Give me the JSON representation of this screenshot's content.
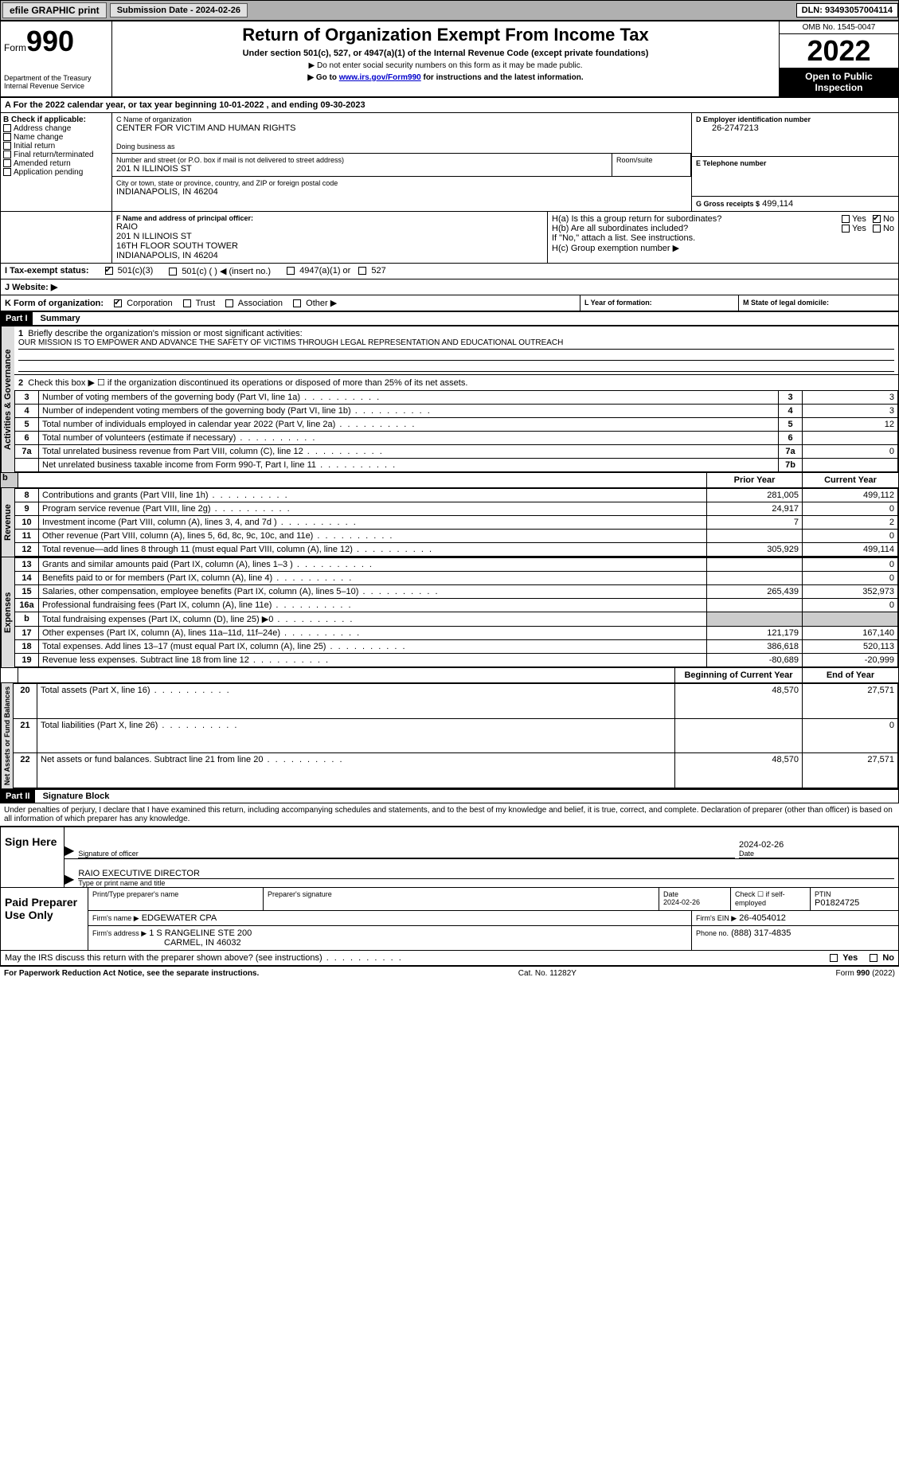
{
  "topbar": {
    "efile": "efile GRAPHIC print",
    "submission": "Submission Date - 2024-02-26",
    "dln": "DLN: 93493057004114"
  },
  "header": {
    "form_word": "Form",
    "form_num": "990",
    "dept": "Department of the Treasury Internal Revenue Service",
    "title": "Return of Organization Exempt From Income Tax",
    "sub": "Under section 501(c), 527, or 4947(a)(1) of the Internal Revenue Code (except private foundations)",
    "note1": "▶ Do not enter social security numbers on this form as it may be made public.",
    "note2_pre": "▶ Go to ",
    "note2_link": "www.irs.gov/Form990",
    "note2_post": " for instructions and the latest information.",
    "omb": "OMB No. 1545-0047",
    "year": "2022",
    "open": "Open to Public Inspection"
  },
  "A": "A For the 2022 calendar year, or tax year beginning 10-01-2022    , and ending 09-30-2023",
  "B": {
    "title": "B Check if applicable:",
    "opts": [
      "Address change",
      "Name change",
      "Initial return",
      "Final return/terminated",
      "Amended return",
      "Application pending"
    ]
  },
  "C": {
    "label_name": "C Name of organization",
    "name": "CENTER FOR VICTIM AND HUMAN RIGHTS",
    "dba_label": "Doing business as",
    "addr_label": "Number and street (or P.O. box if mail is not delivered to street address)",
    "room": "Room/suite",
    "street": "201 N ILLINOIS ST",
    "city_label": "City or town, state or province, country, and ZIP or foreign postal code",
    "city": "INDIANAPOLIS, IN  46204"
  },
  "D": {
    "label": "D Employer identification number",
    "val": "26-2747213"
  },
  "E": {
    "label": "E Telephone number",
    "val": ""
  },
  "G": {
    "label": "G Gross receipts $",
    "val": "499,114"
  },
  "F": {
    "label": "F  Name and address of principal officer:",
    "lines": [
      "RAIO",
      "201 N ILLINOIS ST",
      "16TH FLOOR SOUTH TOWER",
      "INDIANAPOLIS, IN  46204"
    ]
  },
  "H": {
    "a": "H(a)  Is this a group return for subordinates?",
    "b": "H(b)  Are all subordinates included?",
    "note": "If \"No,\" attach a list. See instructions.",
    "c": "H(c)  Group exemption number ▶",
    "yes": "Yes",
    "no": "No"
  },
  "I": {
    "label": "I  Tax-exempt status:",
    "opts": [
      "501(c)(3)",
      "501(c) (  ) ◀ (insert no.)",
      "4947(a)(1) or",
      "527"
    ]
  },
  "J": {
    "label": "J  Website: ▶"
  },
  "K": {
    "label": "K Form of organization:",
    "opts": [
      "Corporation",
      "Trust",
      "Association",
      "Other ▶"
    ]
  },
  "L": {
    "label": "L Year of formation:"
  },
  "M": {
    "label": "M State of legal domicile:"
  },
  "part1": {
    "hdr": "Part I",
    "title": "Summary",
    "q1": "Briefly describe the organization's mission or most significant activities:",
    "mission": "OUR MISSION IS TO EMPOWER AND ADVANCE THE SAFETY OF VICTIMS THROUGH LEGAL REPRESENTATION AND EDUCATIONAL OUTREACH",
    "q2": "Check this box ▶ ☐  if the organization discontinued its operations or disposed of more than 25% of its net assets.",
    "rows_top": [
      {
        "n": "3",
        "t": "Number of voting members of the governing body (Part VI, line 1a)",
        "box": "3",
        "v": "3"
      },
      {
        "n": "4",
        "t": "Number of independent voting members of the governing body (Part VI, line 1b)",
        "box": "4",
        "v": "3"
      },
      {
        "n": "5",
        "t": "Total number of individuals employed in calendar year 2022 (Part V, line 2a)",
        "box": "5",
        "v": "12"
      },
      {
        "n": "6",
        "t": "Total number of volunteers (estimate if necessary)",
        "box": "6",
        "v": ""
      },
      {
        "n": "7a",
        "t": "Total unrelated business revenue from Part VIII, column (C), line 12",
        "box": "7a",
        "v": "0"
      },
      {
        "n": "",
        "t": "Net unrelated business taxable income from Form 990-T, Part I, line 11",
        "box": "7b",
        "v": ""
      }
    ],
    "col_prior": "Prior Year",
    "col_curr": "Current Year",
    "revenue": [
      {
        "n": "8",
        "t": "Contributions and grants (Part VIII, line 1h)",
        "p": "281,005",
        "c": "499,112"
      },
      {
        "n": "9",
        "t": "Program service revenue (Part VIII, line 2g)",
        "p": "24,917",
        "c": "0"
      },
      {
        "n": "10",
        "t": "Investment income (Part VIII, column (A), lines 3, 4, and 7d )",
        "p": "7",
        "c": "2"
      },
      {
        "n": "11",
        "t": "Other revenue (Part VIII, column (A), lines 5, 6d, 8c, 9c, 10c, and 11e)",
        "p": "",
        "c": "0"
      },
      {
        "n": "12",
        "t": "Total revenue—add lines 8 through 11 (must equal Part VIII, column (A), line 12)",
        "p": "305,929",
        "c": "499,114"
      }
    ],
    "expenses": [
      {
        "n": "13",
        "t": "Grants and similar amounts paid (Part IX, column (A), lines 1–3 )",
        "p": "",
        "c": "0"
      },
      {
        "n": "14",
        "t": "Benefits paid to or for members (Part IX, column (A), line 4)",
        "p": "",
        "c": "0"
      },
      {
        "n": "15",
        "t": "Salaries, other compensation, employee benefits (Part IX, column (A), lines 5–10)",
        "p": "265,439",
        "c": "352,973"
      },
      {
        "n": "16a",
        "t": "Professional fundraising fees (Part IX, column (A), line 11e)",
        "p": "",
        "c": "0"
      },
      {
        "n": "b",
        "t": "Total fundraising expenses (Part IX, column (D), line 25) ▶0",
        "p": "SHADE",
        "c": "SHADE"
      },
      {
        "n": "17",
        "t": "Other expenses (Part IX, column (A), lines 11a–11d, 11f–24e)",
        "p": "121,179",
        "c": "167,140"
      },
      {
        "n": "18",
        "t": "Total expenses. Add lines 13–17 (must equal Part IX, column (A), line 25)",
        "p": "386,618",
        "c": "520,113"
      },
      {
        "n": "19",
        "t": "Revenue less expenses. Subtract line 18 from line 12",
        "p": "-80,689",
        "c": "-20,999"
      }
    ],
    "col_begin": "Beginning of Current Year",
    "col_end": "End of Year",
    "netassets": [
      {
        "n": "20",
        "t": "Total assets (Part X, line 16)",
        "p": "48,570",
        "c": "27,571"
      },
      {
        "n": "21",
        "t": "Total liabilities (Part X, line 26)",
        "p": "",
        "c": "0"
      },
      {
        "n": "22",
        "t": "Net assets or fund balances. Subtract line 21 from line 20",
        "p": "48,570",
        "c": "27,571"
      }
    ],
    "vlab_gov": "Activities & Governance",
    "vlab_rev": "Revenue",
    "vlab_exp": "Expenses",
    "vlab_net": "Net Assets or Fund Balances"
  },
  "part2": {
    "hdr": "Part II",
    "title": "Signature Block",
    "decl": "Under penalties of perjury, I declare that I have examined this return, including accompanying schedules and statements, and to the best of my knowledge and belief, it is true, correct, and complete. Declaration of preparer (other than officer) is based on all information of which preparer has any knowledge.",
    "sign_here": "Sign Here",
    "sig_officer": "Signature of officer",
    "sig_date": "2024-02-26",
    "date_lbl": "Date",
    "name_title": "RAIO  EXECUTIVE DIRECTOR",
    "name_title_lbl": "Type or print name and title",
    "paid": "Paid Preparer Use Only",
    "pr_name_lbl": "Print/Type preparer's name",
    "pr_name": "",
    "pr_sig_lbl": "Preparer's signature",
    "pr_date_lbl": "Date",
    "pr_date": "2024-02-26",
    "pr_check": "Check ☐ if self-employed",
    "ptin_lbl": "PTIN",
    "ptin": "P01824725",
    "firm_name_lbl": "Firm's name    ▶",
    "firm_name": "EDGEWATER CPA",
    "firm_ein_lbl": "Firm's EIN ▶",
    "firm_ein": "26-4054012",
    "firm_addr_lbl": "Firm's address ▶",
    "firm_addr1": "1 S RANGELINE STE 200",
    "firm_addr2": "CARMEL, IN  46032",
    "phone_lbl": "Phone no.",
    "phone": "(888) 317-4835",
    "may_irs": "May the IRS discuss this return with the preparer shown above? (see instructions)"
  },
  "footer": {
    "left": "For Paperwork Reduction Act Notice, see the separate instructions.",
    "mid": "Cat. No. 11282Y",
    "right": "Form 990 (2022)"
  }
}
